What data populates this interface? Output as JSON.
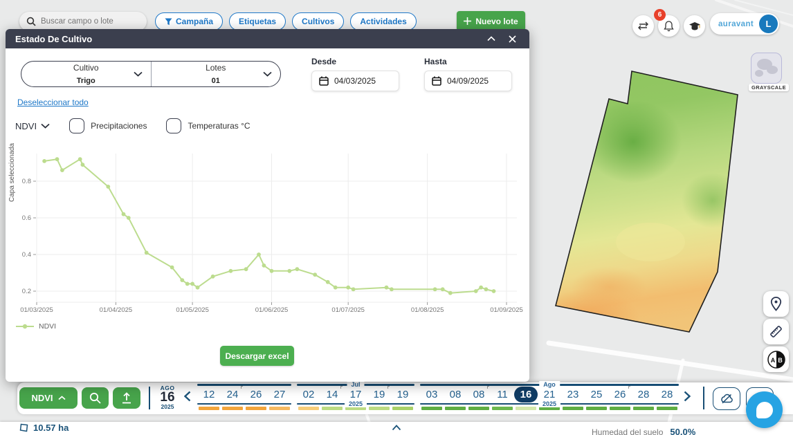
{
  "topbar": {
    "search": {
      "placeholder": "Buscar campo o lote"
    },
    "filters": [
      {
        "label": "Campaña"
      },
      {
        "label": "Etiquetas"
      },
      {
        "label": "Cultivos"
      },
      {
        "label": "Actividades"
      }
    ],
    "new_lot_label": "Nuevo lote",
    "notifications_count": "6",
    "brand": "auravant",
    "avatar_initial": "L"
  },
  "modal": {
    "title": "Estado De Cultivo",
    "cultivo": {
      "label": "Cultivo",
      "value": "Trigo"
    },
    "lotes": {
      "label": "Lotes",
      "value": "01"
    },
    "desde": {
      "label": "Desde",
      "value": "04/03/2025"
    },
    "hasta": {
      "label": "Hasta",
      "value": "04/09/2025"
    },
    "deselect_link": "Deseleccionar todo",
    "layer_select": "NDVI",
    "checkboxes": [
      {
        "label": "Precipitaciones",
        "checked": false
      },
      {
        "label": "Temperaturas °C",
        "checked": false
      }
    ],
    "legend": "NDVI",
    "download_label": "Descargar excel"
  },
  "chart_data": {
    "type": "line",
    "title": "",
    "xlabel": "",
    "ylabel": "Capa seleccionada",
    "x_ticks": [
      "01/03/2025",
      "01/04/2025",
      "01/05/2025",
      "01/06/2025",
      "01/07/2025",
      "01/08/2025",
      "01/09/2025"
    ],
    "y_ticks": [
      0.2,
      0.4,
      0.6,
      0.8
    ],
    "ylim": [
      0.14,
      0.95
    ],
    "grid": true,
    "legend_position": "bottom-left",
    "series": [
      {
        "name": "NDVI",
        "color": "#bcdc8e",
        "points": [
          [
            "04/03/2025",
            0.91
          ],
          [
            "09/03/2025",
            0.92
          ],
          [
            "11/03/2025",
            0.86
          ],
          [
            "18/03/2025",
            0.92
          ],
          [
            "19/03/2025",
            0.89
          ],
          [
            "29/03/2025",
            0.77
          ],
          [
            "04/04/2025",
            0.62
          ],
          [
            "06/04/2025",
            0.6
          ],
          [
            "13/04/2025",
            0.41
          ],
          [
            "23/04/2025",
            0.33
          ],
          [
            "27/04/2025",
            0.26
          ],
          [
            "29/04/2025",
            0.24
          ],
          [
            "01/05/2025",
            0.24
          ],
          [
            "03/05/2025",
            0.22
          ],
          [
            "09/05/2025",
            0.28
          ],
          [
            "16/05/2025",
            0.31
          ],
          [
            "22/05/2025",
            0.32
          ],
          [
            "27/05/2025",
            0.4
          ],
          [
            "29/05/2025",
            0.34
          ],
          [
            "01/06/2025",
            0.31
          ],
          [
            "08/06/2025",
            0.31
          ],
          [
            "11/06/2025",
            0.32
          ],
          [
            "18/06/2025",
            0.29
          ],
          [
            "23/06/2025",
            0.25
          ],
          [
            "26/06/2025",
            0.22
          ],
          [
            "01/07/2025",
            0.22
          ],
          [
            "03/07/2025",
            0.21
          ],
          [
            "16/07/2025",
            0.22
          ],
          [
            "18/07/2025",
            0.21
          ],
          [
            "04/08/2025",
            0.21
          ],
          [
            "07/08/2025",
            0.21
          ],
          [
            "10/08/2025",
            0.19
          ],
          [
            "20/08/2025",
            0.2
          ],
          [
            "22/08/2025",
            0.22
          ],
          [
            "24/08/2025",
            0.21
          ],
          [
            "27/08/2025",
            0.2
          ]
        ]
      }
    ]
  },
  "map": {
    "grayscale_label": "GRAYSCALE"
  },
  "bottombar": {
    "layer_button": "NDVI",
    "date": {
      "month": "AGO",
      "day": "16",
      "year": "2025"
    },
    "timeline": {
      "groups": [
        {
          "month": "",
          "year": "",
          "dates": [
            {
              "d": "12",
              "c": "#f2a53c"
            },
            {
              "d": "24",
              "c": "#f2a53c",
              "mark": true
            },
            {
              "d": "26",
              "c": "#f2a53c"
            },
            {
              "d": "27",
              "c": "#f5b961"
            }
          ]
        },
        {
          "month": "Jul",
          "year": "2025",
          "dates": [
            {
              "d": "02",
              "c": "#f7cd79"
            },
            {
              "d": "14",
              "c": "#bcdb82",
              "mark": true
            },
            {
              "d": "17",
              "c": "#bcdb82"
            },
            {
              "d": "19",
              "c": "#bcdb82",
              "mark": true
            },
            {
              "d": "19",
              "c": "#a9d168"
            }
          ]
        },
        {
          "month": "Ago",
          "year": "2025",
          "dates": [
            {
              "d": "03",
              "c": "#5fae43"
            },
            {
              "d": "08",
              "c": "#5fae43"
            },
            {
              "d": "08",
              "c": "#5fae43",
              "mark": true
            },
            {
              "d": "11",
              "c": "#6cb84e"
            },
            {
              "d": "16",
              "c": "#d4e8ab",
              "selected": true
            },
            {
              "d": "21",
              "c": "#5fae43"
            },
            {
              "d": "23",
              "c": "#5fae43"
            },
            {
              "d": "25",
              "c": "#5fae43"
            },
            {
              "d": "26",
              "c": "#5fae43",
              "mark": true
            },
            {
              "d": "28",
              "c": "#5fae43"
            },
            {
              "d": "28",
              "c": "#5fae43"
            }
          ]
        }
      ]
    }
  },
  "footer": {
    "area": "10.57 ha",
    "moisture_label": "Humedad del suelo",
    "moisture_value": "50.0%"
  }
}
